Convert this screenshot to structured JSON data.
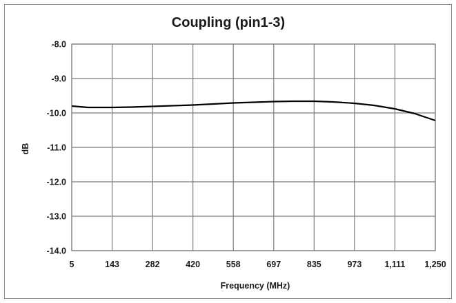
{
  "chart_data": {
    "type": "line",
    "title": "Coupling (pin1-3)",
    "xlabel": "Frequency (MHz)",
    "ylabel": "dB",
    "xlim": [
      5,
      1250
    ],
    "ylim": [
      -14.0,
      -8.0
    ],
    "x_ticks": [
      "5",
      "143",
      "282",
      "420",
      "558",
      "697",
      "835",
      "973",
      "1,111",
      "1,250"
    ],
    "y_ticks": [
      "-8.0",
      "-9.0",
      "-10.0",
      "-11.0",
      "-12.0",
      "-13.0",
      "-14.0"
    ],
    "y_tick_values": [
      -8,
      -9,
      -10,
      -11,
      -12,
      -13,
      -14
    ],
    "grid": true,
    "legend": "none",
    "line_color": "#000000",
    "series": [
      {
        "x": [
          5,
          60,
          143,
          210,
          282,
          350,
          420,
          490,
          558,
          630,
          697,
          760,
          835,
          900,
          973,
          1040,
          1111,
          1180,
          1250
        ],
        "y": [
          -9.8,
          -9.84,
          -9.84,
          -9.83,
          -9.81,
          -9.79,
          -9.77,
          -9.74,
          -9.71,
          -9.69,
          -9.67,
          -9.66,
          -9.66,
          -9.68,
          -9.72,
          -9.78,
          -9.88,
          -10.02,
          -10.22
        ]
      }
    ]
  }
}
